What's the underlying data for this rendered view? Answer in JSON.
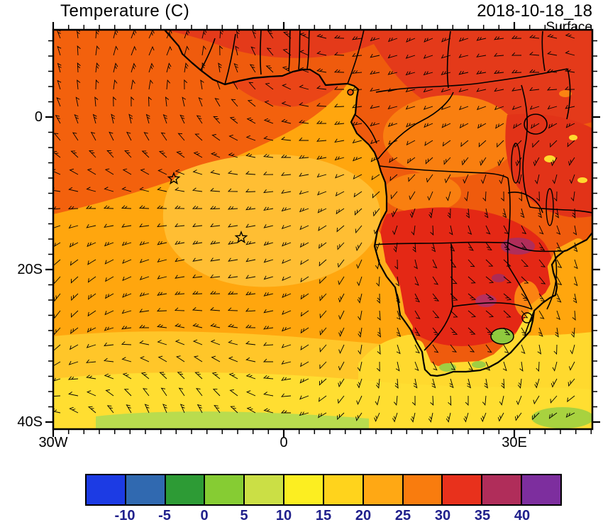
{
  "header": {
    "title": "Temperature (C)",
    "datetime": "2018-10-18_18",
    "level": "Surface"
  },
  "axes": {
    "y": [
      {
        "label": "0"
      },
      {
        "label": "20S"
      },
      {
        "label": "40S"
      }
    ],
    "x": [
      {
        "label": "30W"
      },
      {
        "label": "0"
      },
      {
        "label": "30E"
      }
    ]
  },
  "colorbar": {
    "labels": [
      "-10",
      "-5",
      "0",
      "5",
      "10",
      "15",
      "20",
      "25",
      "30",
      "35",
      "40"
    ],
    "colors": [
      "#1C3BE4",
      "#3069B0",
      "#2D9B35",
      "#86CC33",
      "#CBDF45",
      "#FCEE21",
      "#FFD31C",
      "#FFA814",
      "#F97C0E",
      "#E8311C",
      "#B02D5A",
      "#7D2E9E"
    ],
    "label_color": "#20208C"
  },
  "map": {
    "variable": "Temperature (C)",
    "level": "Surface",
    "time": "2018-10-18_18",
    "units": "C",
    "markers": [
      {
        "x": 170,
        "y": 210
      },
      {
        "x": 265,
        "y": 293
      }
    ]
  },
  "chart_data": {
    "type": "heatmap",
    "title": "Temperature (C)",
    "subtitle": "Surface",
    "timestamp": "2018-10-18_18",
    "colorbar_ticks": [
      -10,
      -5,
      0,
      5,
      10,
      15,
      20,
      25,
      30,
      35,
      40
    ],
    "x_ticks": [
      "30W",
      "0",
      "30E"
    ],
    "y_ticks": [
      "0",
      "20S",
      "40S"
    ],
    "legend_position": "bottom"
  }
}
